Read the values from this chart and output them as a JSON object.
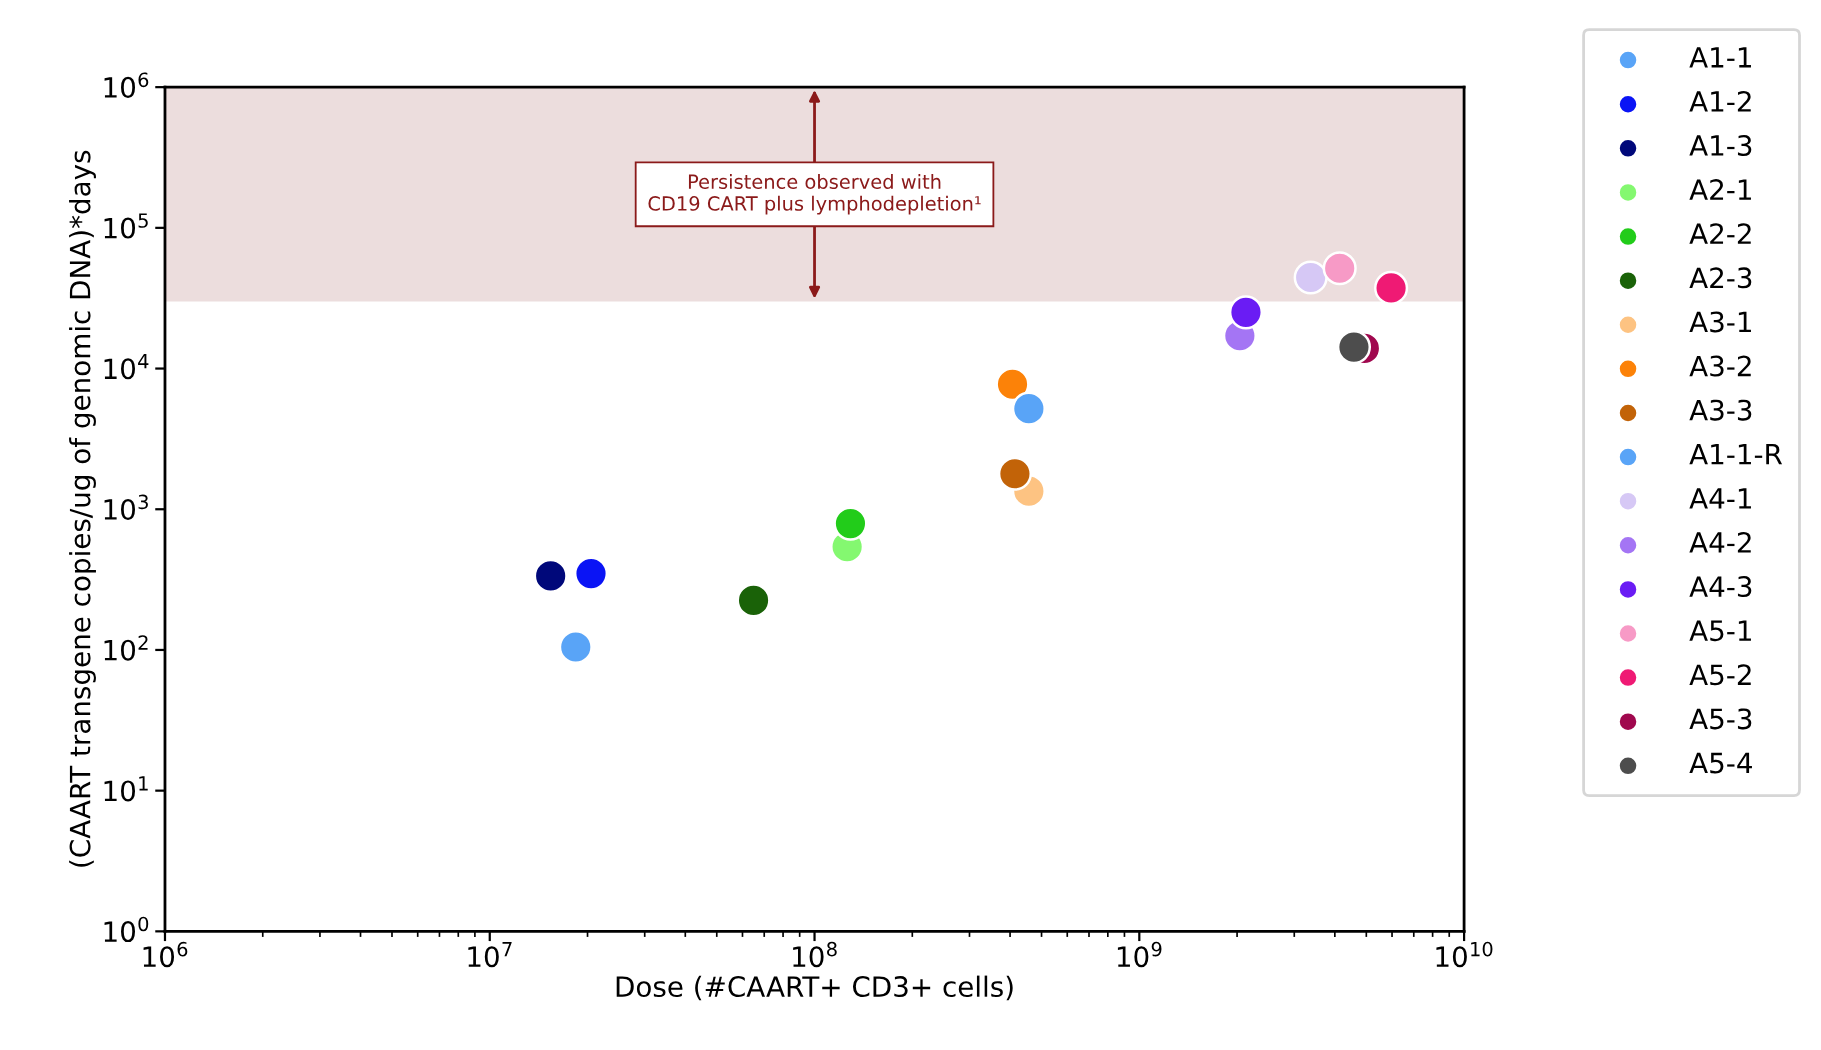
{
  "chart_data": {
    "type": "scatter",
    "xlabel": "Dose (#CAART+ CD3+ cells)",
    "ylabel": "(CAART transgene copies/ug of genomic DNA)*days",
    "log": "xy",
    "xlim": [
      1000000,
      10000000000
    ],
    "ylim": [
      1,
      1000000
    ],
    "xticks": [
      {
        "value": 1000000,
        "label": "10$^{6}$"
      },
      {
        "value": 10000000,
        "label": "10$^{7}$"
      },
      {
        "value": 100000000,
        "label": "10$^{8}$"
      },
      {
        "value": 1000000000,
        "label": "10$^{9}$"
      },
      {
        "value": 10000000000,
        "label": "10$^{10}$"
      }
    ],
    "yticks": [
      {
        "value": 1,
        "label": "10$^{0}$"
      },
      {
        "value": 10,
        "label": "10$^{1}$"
      },
      {
        "value": 100,
        "label": "10$^{2}$"
      },
      {
        "value": 1000,
        "label": "10$^{3}$"
      },
      {
        "value": 10000,
        "label": "10$^{4}$"
      },
      {
        "value": 100000,
        "label": "10$^{5}$"
      },
      {
        "value": 1000000,
        "label": "10$^{6}$"
      }
    ],
    "marker": "circle",
    "legend": "right",
    "grid": false,
    "bands": [
      {
        "axis": "y",
        "from": 30000,
        "to": 1000000,
        "label": "Persistence observed with\nCD19 CART plus lymphodepletion¹",
        "color": "#ecdddd"
      }
    ],
    "series": [
      {
        "name": "A1-1",
        "color": "#59a4f7",
        "x": [
          18400000
        ],
        "values": [
          105
        ]
      },
      {
        "name": "A1-2",
        "color": "#0a14f5",
        "x": [
          20500000
        ],
        "values": [
          349
        ]
      },
      {
        "name": "A1-3",
        "color": "#00087a",
        "x": [
          15400000
        ],
        "values": [
          336
        ]
      },
      {
        "name": "A2-1",
        "color": "#84f870",
        "x": [
          126000000
        ],
        "values": [
          541
        ]
      },
      {
        "name": "A2-2",
        "color": "#22cc1a",
        "x": [
          129000000
        ],
        "values": [
          791
        ]
      },
      {
        "name": "A2-3",
        "color": "#1a6208",
        "x": [
          64900000
        ],
        "values": [
          225
        ]
      },
      {
        "name": "A3-1",
        "color": "#fdc382",
        "x": [
          457000000
        ],
        "values": [
          1345
        ]
      },
      {
        "name": "A3-2",
        "color": "#fc8208",
        "x": [
          407000000
        ],
        "values": [
          7730
        ]
      },
      {
        "name": "A3-3",
        "color": "#c26308",
        "x": [
          414000000
        ],
        "values": [
          1787
        ]
      },
      {
        "name": "A1-1-R",
        "color": "#59a4f7",
        "x": [
          457000000
        ],
        "values": [
          5190
        ]
      },
      {
        "name": "A4-1",
        "color": "#d6c8f5",
        "x": [
          3370000000
        ],
        "values": [
          44400
        ]
      },
      {
        "name": "A4-2",
        "color": "#a475f4",
        "x": [
          2040000000
        ],
        "values": [
          17100
        ]
      },
      {
        "name": "A4-3",
        "color": "#6a1cf4",
        "x": [
          2130000000
        ],
        "values": [
          25100
        ]
      },
      {
        "name": "A5-1",
        "color": "#f79ac6",
        "x": [
          4140000000
        ],
        "values": [
          51600
        ]
      },
      {
        "name": "A5-2",
        "color": "#ef1a74",
        "x": [
          5960000000
        ],
        "values": [
          37400
        ]
      },
      {
        "name": "A5-3",
        "color": "#a0084e",
        "x": [
          4930000000
        ],
        "values": [
          13900
        ]
      },
      {
        "name": "A5-4",
        "color": "#4d4d4d",
        "x": [
          4580000000
        ],
        "values": [
          14200
        ]
      }
    ]
  }
}
